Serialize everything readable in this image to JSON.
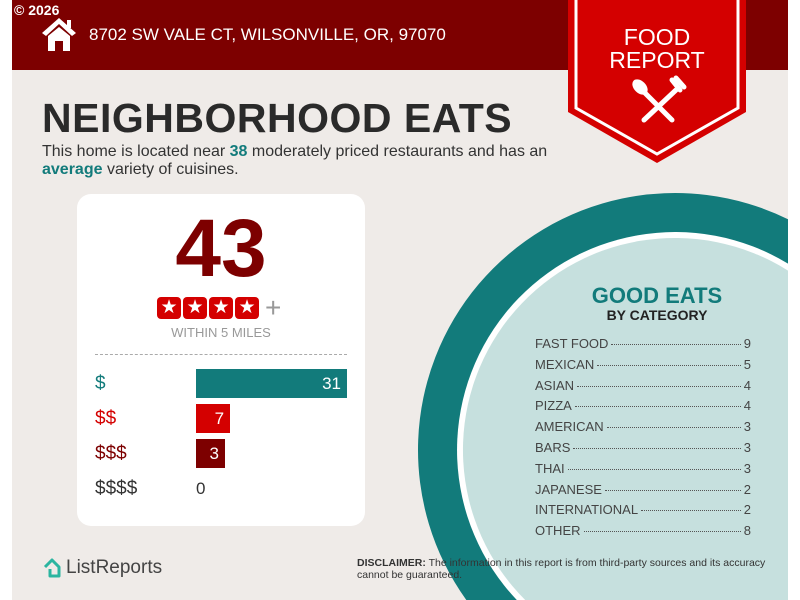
{
  "header": {
    "copyright": "© 2026",
    "address": "8702 SW VALE CT, WILSONVILLE, OR, 97070",
    "badge_line1": "FOOD",
    "badge_line2": "REPORT",
    "badge_icon": "fork-spoon-icon"
  },
  "title": "NEIGHBORHOOD EATS",
  "intro": {
    "pre": "This home is located near ",
    "count": "38",
    "mid": " moderately priced restaurants and has an ",
    "variety": "average",
    "post": " variety of cuisines."
  },
  "summary": {
    "total": "43",
    "rating_stars": 4,
    "rating_suffix": "+",
    "within": "WITHIN 5 MILES"
  },
  "price_levels": [
    {
      "label": "$",
      "value": 31,
      "color": "#127b7b"
    },
    {
      "label": "$$",
      "value": 7,
      "color": "#d40000"
    },
    {
      "label": "$$$",
      "value": 3,
      "color": "#7d0000"
    },
    {
      "label": "$$$$",
      "value": 0,
      "color": "#333333"
    }
  ],
  "good_eats": {
    "title": "GOOD EATS",
    "subtitle": "BY CATEGORY",
    "categories": [
      {
        "name": "FAST FOOD",
        "count": "9"
      },
      {
        "name": "MEXICAN",
        "count": "5"
      },
      {
        "name": "ASIAN",
        "count": "4"
      },
      {
        "name": "PIZZA",
        "count": "4"
      },
      {
        "name": "AMERICAN",
        "count": "3"
      },
      {
        "name": "BARS",
        "count": "3"
      },
      {
        "name": "THAI",
        "count": "3"
      },
      {
        "name": "JAPANESE",
        "count": "2"
      },
      {
        "name": "INTERNATIONAL",
        "count": "2"
      },
      {
        "name": "OTHER",
        "count": "8"
      }
    ]
  },
  "footer": {
    "logo": "ListReports",
    "disclaimer_label": "DISCLAIMER:",
    "disclaimer": " The information in this report is from third-party sources and its accuracy cannot be guaranteed."
  },
  "colors": {
    "dark_red": "#7d0000",
    "red": "#d40000",
    "teal": "#127b7b",
    "light_teal": "#c6e0de",
    "bg": "#efebe8"
  }
}
